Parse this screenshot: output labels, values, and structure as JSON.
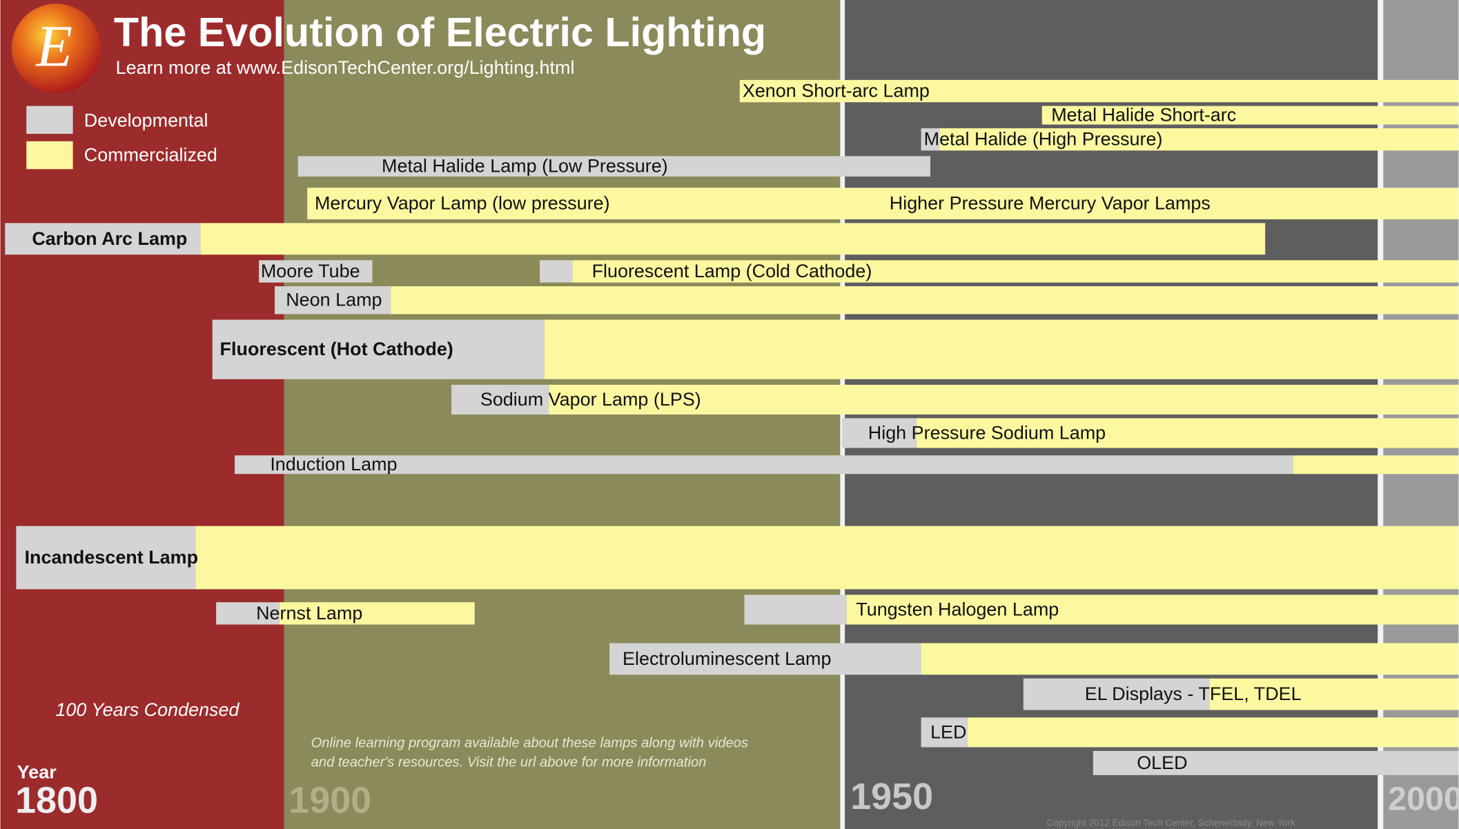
{
  "header": {
    "logo": "E",
    "title": "The Evolution of Electric Lighting",
    "subtitle": "Learn more at www.EdisonTechCenter.org/Lighting.html"
  },
  "legend": [
    {
      "label": "Developmental"
    },
    {
      "label": "Commercialized"
    }
  ],
  "lamps": [
    {
      "label": "Xenon Short-arc Lamp"
    },
    {
      "label": "Metal Halide Short-arc"
    },
    {
      "label": "Metal Halide (High Pressure)"
    },
    {
      "label": "Metal Halide Lamp (Low Pressure)"
    },
    {
      "label": "Mercury Vapor Lamp (low pressure)"
    },
    {
      "label": "Higher Pressure Mercury Vapor Lamps"
    },
    {
      "label": "Carbon Arc Lamp"
    },
    {
      "label": "Moore Tube"
    },
    {
      "label": "Fluorescent Lamp (Cold Cathode)"
    },
    {
      "label": "Neon Lamp"
    },
    {
      "label": "Fluorescent (Hot Cathode)"
    },
    {
      "label": "Sodium Vapor Lamp (LPS)"
    },
    {
      "label": "High Pressure Sodium Lamp"
    },
    {
      "label": "Induction Lamp"
    },
    {
      "label": "Incandescent Lamp"
    },
    {
      "label": "Nernst Lamp"
    },
    {
      "label": "Tungsten Halogen Lamp"
    },
    {
      "label": "Electroluminescent Lamp"
    },
    {
      "label": "EL Displays - TFEL, TDEL"
    },
    {
      "label": "LED"
    },
    {
      "label": "OLED"
    }
  ],
  "year_label": "Year",
  "eras": [
    {
      "label": "1800"
    },
    {
      "label": "1900"
    },
    {
      "label": "1950"
    },
    {
      "label": "2000"
    }
  ],
  "notes": [
    "100 Years Condensed",
    "Online learning program available about these lamps along with videos",
    "and teacher's resources. Visit the url above for more information"
  ],
  "copyright": "Copyright 2012 Edison Tech Center, Schenectady, New York"
}
